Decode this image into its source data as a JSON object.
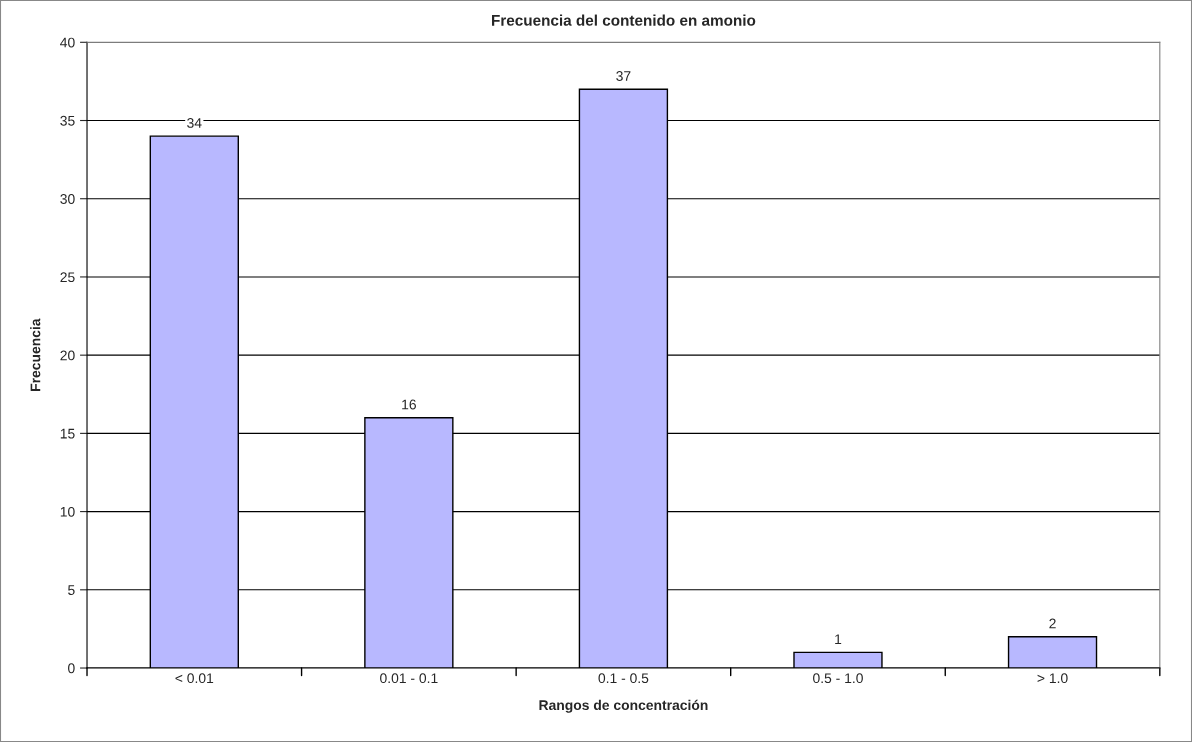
{
  "chart_data": {
    "type": "bar",
    "title": "Frecuencia del contenido en amonio",
    "xlabel": "Rangos de concentración",
    "ylabel": "Frecuencia",
    "categories": [
      "< 0.01",
      "0.01 - 0.1",
      "0.1 - 0.5",
      "0.5 - 1.0",
      "> 1.0"
    ],
    "values": [
      34,
      16,
      37,
      1,
      2
    ],
    "color": "#b8b8ff",
    "ylim": [
      0,
      40
    ],
    "yticks": [
      0,
      5,
      10,
      15,
      20,
      25,
      30,
      35,
      40
    ],
    "grid": "y",
    "data_labels": true
  }
}
